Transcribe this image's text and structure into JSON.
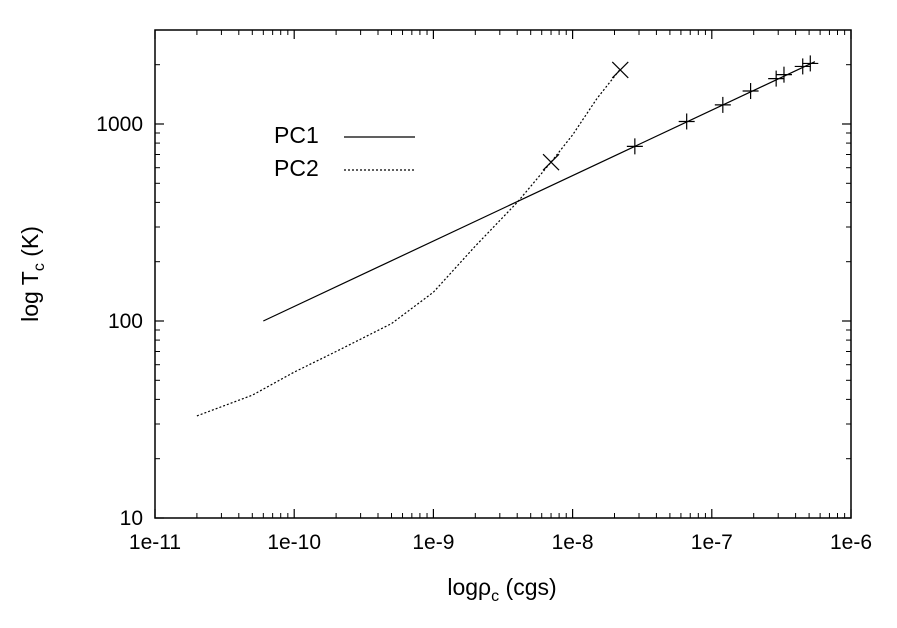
{
  "chart_data": {
    "type": "line",
    "xscale": "log",
    "yscale": "log",
    "xlim": [
      1e-11,
      1e-06
    ],
    "ylim": [
      10,
      3000
    ],
    "xticks": [
      1e-11,
      1e-10,
      1e-09,
      1e-08,
      1e-07,
      1e-06
    ],
    "xtick_labels": [
      "1e-11",
      "1e-10",
      "1e-9",
      "1e-8",
      "1e-7",
      "1e-6"
    ],
    "yticks": [
      10,
      100,
      1000
    ],
    "ytick_labels": [
      "10",
      "100",
      "1000"
    ],
    "xlabel": {
      "base": "logρ",
      "sub": "c",
      "suffix": " (cgs)"
    },
    "ylabel": {
      "base": "log T",
      "sub": "c",
      "suffix": " (K)"
    },
    "grid": false,
    "legend": "upper-left",
    "series": [
      {
        "name": "PC1",
        "style": "solid",
        "color": "#000000",
        "line": {
          "x": [
            6e-11,
            5.5e-07
          ],
          "y": [
            100,
            2070
          ]
        },
        "marker": "plus",
        "points": {
          "x": [
            2.8e-08,
            6.6e-08,
            1.2e-07,
            1.9e-07,
            2.9e-07,
            3.3e-07,
            4.5e-07,
            5.1e-07
          ],
          "y": [
            770,
            1030,
            1250,
            1470,
            1700,
            1780,
            1960,
            2030
          ]
        }
      },
      {
        "name": "PC2",
        "style": "dotted",
        "color": "#000000",
        "line": {
          "x": [
            2e-11,
            5e-11,
            1e-10,
            2e-10,
            5e-10,
            1e-09,
            2e-09,
            4e-09,
            7e-09,
            1e-08,
            1.5e-08,
            2.2e-08
          ],
          "y": [
            33,
            42,
            55,
            70,
            97,
            140,
            240,
            400,
            640,
            880,
            1350,
            1900
          ]
        },
        "marker": "cross",
        "points": {
          "x": [
            7e-09,
            2.2e-08
          ],
          "y": [
            640,
            1880
          ]
        }
      }
    ]
  }
}
